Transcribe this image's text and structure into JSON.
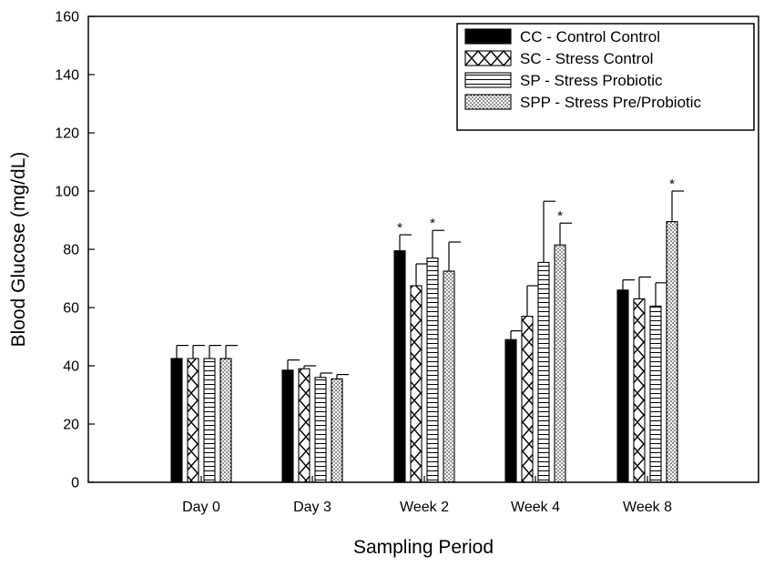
{
  "chart_data": {
    "type": "bar",
    "xlabel": "Sampling Period",
    "ylabel": "Blood Glucose (mg/dL)",
    "ylim": [
      0,
      160
    ],
    "yticks": [
      "0",
      "20",
      "40",
      "60",
      "80",
      "100",
      "120",
      "140",
      "160"
    ],
    "categories": [
      "Day 0",
      "Day 3",
      "Week 2",
      "Week 4",
      "Week 8"
    ],
    "legend_position": "top-right",
    "series": [
      {
        "name": "CC - Control Control",
        "pattern": "solid",
        "values": [
          42.5,
          38.5,
          79.5,
          49,
          66
        ],
        "errors": [
          4.5,
          3.5,
          5.5,
          3,
          3.5
        ],
        "significance": [
          "",
          "",
          "*",
          "",
          ""
        ]
      },
      {
        "name": "SC - Stress Control",
        "pattern": "crosshatch",
        "values": [
          42.5,
          39,
          67.5,
          57,
          63
        ],
        "errors": [
          4.5,
          1,
          7.5,
          10.5,
          7.5
        ],
        "significance": [
          "",
          "",
          "",
          "",
          ""
        ]
      },
      {
        "name": "SP - Stress Probiotic",
        "pattern": "horizontal-lines",
        "values": [
          42.5,
          36,
          77,
          75.5,
          60.5
        ],
        "errors": [
          4.5,
          1.5,
          9.5,
          21,
          8
        ],
        "significance": [
          "",
          "",
          "*",
          "",
          ""
        ]
      },
      {
        "name": "SPP - Stress Pre/Probiotic",
        "pattern": "dots",
        "values": [
          42.5,
          35.5,
          72.5,
          81.5,
          89.5
        ],
        "errors": [
          4.5,
          1.5,
          10,
          7.5,
          10.5
        ],
        "significance": [
          "",
          "",
          "",
          "*",
          "*"
        ]
      }
    ]
  }
}
